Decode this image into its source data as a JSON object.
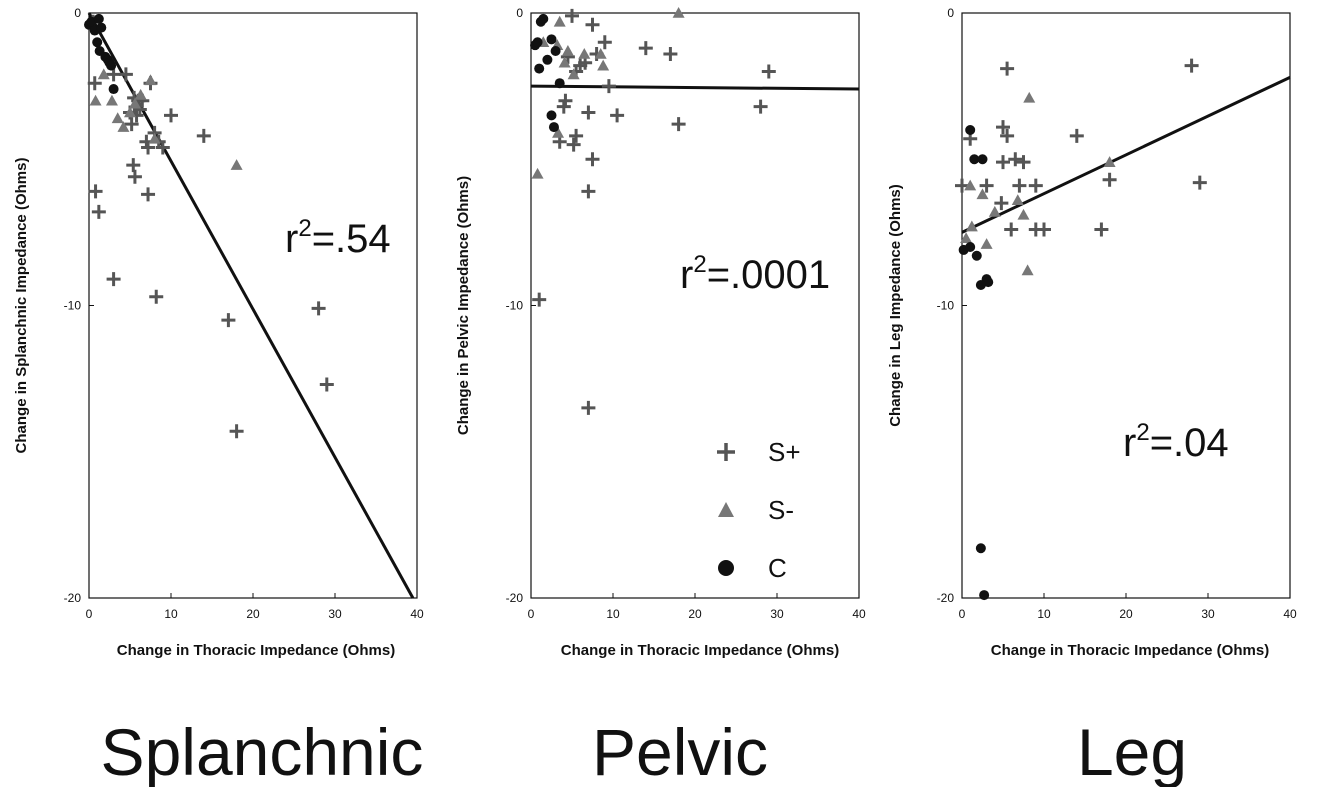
{
  "chart_data": [
    {
      "type": "scatter",
      "title": "Splanchnic",
      "xlabel": "Change in Thoracic Impedance (Ohms)",
      "ylabel": "Change in Splanchnic Impedance (Ohms)",
      "xlim": [
        0,
        40
      ],
      "ylim": [
        -20,
        0
      ],
      "x_ticks": [
        "0",
        "10",
        "20",
        "30",
        "40"
      ],
      "y_ticks": [
        "0",
        "-10",
        "-20"
      ],
      "annotation": {
        "base": "r",
        "sup": "2",
        "value": "=.54"
      },
      "regression_line": {
        "x": [
          0,
          39.5
        ],
        "y": [
          0,
          -20
        ]
      },
      "series": [
        {
          "name": "S+",
          "marker": "plus",
          "color": "#555555",
          "x": [
            0.5,
            0.7,
            3,
            4.5,
            5,
            5.2,
            5.4,
            5.6,
            5.8,
            6,
            6.2,
            6.5,
            7,
            7.2,
            7.5,
            8,
            8.5,
            9,
            10,
            14,
            0.8,
            1.2,
            3,
            8.2,
            17,
            28,
            29,
            18,
            7.2,
            5.5
          ],
          "y": [
            -0.3,
            -2.4,
            -2.1,
            -2.1,
            -3.4,
            -3.8,
            -5.2,
            -5.6,
            -3.5,
            -3.0,
            -3.3,
            -3.0,
            -4.4,
            -4.6,
            -2.4,
            -4.1,
            -4.4,
            -4.6,
            -3.5,
            -4.2,
            -6.1,
            -6.8,
            -9.1,
            -9.7,
            -10.5,
            -10.1,
            -12.7,
            -14.3,
            -6.2,
            -2.9
          ]
        },
        {
          "name": "S-",
          "marker": "triangle",
          "color": "#777777",
          "x": [
            0.8,
            1.8,
            2.8,
            3.5,
            4.2,
            5,
            5.6,
            6.3,
            7.5,
            8,
            18
          ],
          "y": [
            -3.0,
            -2.1,
            -3.0,
            -3.6,
            -3.9,
            -3.4,
            -3.1,
            -2.8,
            -2.3,
            -4.3,
            -5.2
          ]
        },
        {
          "name": "C",
          "marker": "circle",
          "color": "#111111",
          "x": [
            0,
            0.3,
            0.7,
            1.2,
            1.5,
            1.0,
            1.3,
            2,
            2.3,
            2.5,
            2.7,
            3
          ],
          "y": [
            -0.4,
            -0.3,
            -0.6,
            -0.2,
            -0.5,
            -1.0,
            -1.3,
            -1.5,
            -1.6,
            -1.7,
            -1.8,
            -2.6
          ]
        }
      ]
    },
    {
      "type": "scatter",
      "title": "Pelvic",
      "xlabel": "Change in Thoracic Impedance (Ohms)",
      "ylabel": "Change in Pelvic Impedance (Ohms)",
      "xlim": [
        0,
        40
      ],
      "ylim": [
        -20,
        0
      ],
      "x_ticks": [
        "0",
        "10",
        "20",
        "30",
        "40"
      ],
      "y_ticks": [
        "0",
        "-10",
        "-20"
      ],
      "annotation": {
        "base": "r",
        "sup": "2",
        "value": "=.0001"
      },
      "regression_line": {
        "x": [
          0,
          40
        ],
        "y": [
          -2.5,
          -2.6
        ]
      },
      "series": [
        {
          "name": "S+",
          "marker": "plus",
          "color": "#555555",
          "x": [
            5,
            7.5,
            9,
            14,
            17,
            29,
            4.5,
            6,
            8,
            9.5,
            5.5,
            4,
            7,
            10.5,
            18,
            28,
            3.5,
            5.5,
            7.5,
            7,
            1,
            7,
            4.2,
            6.6,
            5.2
          ],
          "y": [
            -0.1,
            -0.4,
            -1.0,
            -1.2,
            -1.4,
            -2.0,
            -1.5,
            -1.8,
            -1.4,
            -2.5,
            -2.0,
            -3.2,
            -3.4,
            -3.5,
            -3.8,
            -3.2,
            -4.4,
            -4.2,
            -5.0,
            -6.1,
            -9.8,
            -13.5,
            -3.0,
            -1.7,
            -4.5
          ]
        },
        {
          "name": "S-",
          "marker": "triangle",
          "color": "#777777",
          "x": [
            3.5,
            4.5,
            6.5,
            8.5,
            8.8,
            1.5,
            3.2,
            4.1,
            5.2,
            18,
            0.8,
            3.3
          ],
          "y": [
            -0.3,
            -1.3,
            -1.4,
            -1.4,
            -1.8,
            -1.0,
            -1.1,
            -1.7,
            -2.1,
            0,
            -5.5,
            -4.1
          ]
        },
        {
          "name": "C",
          "marker": "circle",
          "color": "#111111",
          "x": [
            1.2,
            1.5,
            0.5,
            0.8,
            2.5,
            3,
            1,
            2,
            2.5,
            3.5,
            2.8
          ],
          "y": [
            -0.3,
            -0.2,
            -1.1,
            -1.0,
            -0.9,
            -1.3,
            -1.9,
            -1.6,
            -3.5,
            -2.4,
            -3.9
          ]
        }
      ]
    },
    {
      "type": "scatter",
      "title": "Leg",
      "xlabel": "Change in Thoracic Impedance (Ohms)",
      "ylabel": "Change in Leg Impedance (Ohms)",
      "xlim": [
        0,
        40
      ],
      "ylim": [
        -20,
        0
      ],
      "x_ticks": [
        "0",
        "10",
        "20",
        "30",
        "40"
      ],
      "y_ticks": [
        "0",
        "-10",
        "-20"
      ],
      "annotation": {
        "base": "r",
        "sup": "2",
        "value": "=.04"
      },
      "regression_line": {
        "x": [
          0,
          40
        ],
        "y": [
          -7.5,
          -2.2
        ]
      },
      "series": [
        {
          "name": "S+",
          "marker": "plus",
          "color": "#555555",
          "x": [
            5.5,
            28,
            1,
            5,
            5.5,
            14,
            5,
            6.5,
            7.5,
            0,
            3,
            7,
            9,
            18,
            29,
            4.8,
            6,
            9,
            10,
            17
          ],
          "y": [
            -1.9,
            -1.8,
            -4.3,
            -3.9,
            -4.2,
            -4.2,
            -5.1,
            -5.0,
            -5.1,
            -5.9,
            -5.9,
            -5.9,
            -5.9,
            -5.7,
            -5.8,
            -6.5,
            -7.4,
            -7.4,
            -7.4,
            -7.4
          ]
        },
        {
          "name": "S-",
          "marker": "triangle",
          "color": "#777777",
          "x": [
            8.2,
            1,
            2.5,
            4,
            6.8,
            7.5,
            3,
            0.5,
            1.2,
            8,
            18
          ],
          "y": [
            -2.9,
            -5.9,
            -6.2,
            -6.8,
            -6.4,
            -6.9,
            -7.9,
            -7.7,
            -7.3,
            -8.8,
            -5.1
          ]
        },
        {
          "name": "C",
          "marker": "circle",
          "color": "#111111",
          "x": [
            1,
            1.5,
            2.5,
            0.2,
            1,
            1.8,
            3,
            3.2,
            2.3,
            2.3,
            2.7
          ],
          "y": [
            -4,
            -5,
            -5,
            -8.1,
            -8,
            -8.3,
            -9.1,
            -9.2,
            -9.3,
            -18.3,
            -19.9
          ]
        }
      ]
    }
  ],
  "legend": {
    "placement": "bottom-right of Pelvic panel",
    "items": [
      {
        "marker": "plus",
        "label": "S+"
      },
      {
        "marker": "triangle",
        "label": "S-"
      },
      {
        "marker": "circle",
        "label": "C"
      }
    ]
  }
}
